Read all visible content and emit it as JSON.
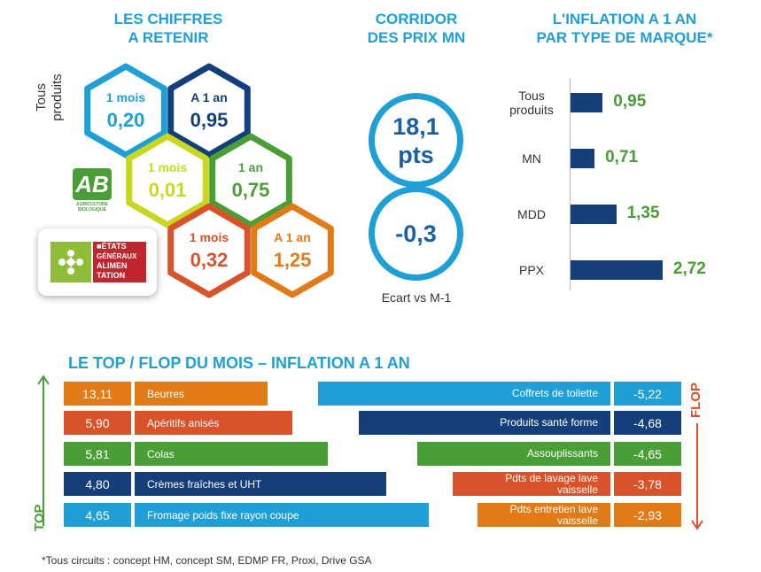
{
  "headers": {
    "chiffres": [
      "LES CHIFFRES",
      "A RETENIR"
    ],
    "corridor": [
      "CORRIDOR",
      "DES PRIX MN"
    ],
    "inflation": [
      "L'INFLATION A 1 AN",
      "PAR TYPE DE MARQUE*"
    ]
  },
  "hex_section": {
    "side_label": [
      "Tous",
      "produits"
    ],
    "bio_logo_text": "AB",
    "bio_logo_sub": "AGRICULTURE BIOLOGIQUE",
    "ega_logo_lines": [
      "■ÉTATS",
      "GÉNÉRAUX",
      "ALIMEN",
      "TATION"
    ],
    "hexes": [
      {
        "label": "1 mois",
        "value": "0,20",
        "color": "#1ea0d6"
      },
      {
        "label": "A 1 an",
        "value": "0,95",
        "color": "#153f7a"
      },
      {
        "label": "1 mois",
        "value": "0,01",
        "color": "#c8d820"
      },
      {
        "label": "1 an",
        "value": "0,75",
        "color": "#4a9e36"
      },
      {
        "label": "1 mois",
        "value": "0,32",
        "color": "#d8522a"
      },
      {
        "label": "A 1 an",
        "value": "1,25",
        "color": "#e07b17"
      }
    ]
  },
  "corridor": {
    "main_value": "18,1",
    "main_unit": "pts",
    "delta_value": "-0,3",
    "caption": "Ecart vs M-1"
  },
  "chart_data": [
    {
      "type": "bar",
      "orientation": "horizontal",
      "title": "L'INFLATION A 1 AN PAR TYPE DE MARQUE*",
      "categories": [
        [
          "Tous",
          "produits"
        ],
        [
          "MN"
        ],
        [
          "MDD"
        ],
        [
          "PPX"
        ]
      ],
      "values": [
        0.95,
        0.71,
        1.35,
        2.72
      ],
      "value_labels": [
        "0,95",
        "0,71",
        "1,35",
        "2,72"
      ],
      "bar_color": "#153f7a",
      "label_color": "#4a9e36"
    },
    {
      "type": "bar",
      "orientation": "horizontal",
      "title": "LE TOP / FLOP DU MOIS – INFLATION A 1 AN",
      "top": {
        "axis_label": "TOP",
        "categories": [
          "Beurres",
          "Apéritifs anisés",
          "Colas",
          "Crèmes fraîches et UHT",
          "Fromage poids fixe rayon coupe"
        ],
        "values": [
          13.11,
          5.9,
          5.81,
          4.8,
          4.65
        ],
        "value_labels": [
          "13,11",
          "5,90",
          "5,81",
          "4,80",
          "4,65"
        ],
        "colors": [
          "#e07b17",
          "#d8522a",
          "#4a9e36",
          "#153f7a",
          "#1ea0d6"
        ]
      },
      "flop": {
        "axis_label": "FLOP",
        "categories": [
          "Coffrets de toilette",
          "Produits santé forme",
          "Assouplissants",
          "Pdts de lavage lave vaisselle",
          "Pdts entretien lave vaisselle"
        ],
        "values": [
          -5.22,
          -4.68,
          -4.65,
          -3.78,
          -2.93
        ],
        "value_labels": [
          "-5,22",
          "-4,68",
          "-4,65",
          "-3,78",
          "-2,93"
        ],
        "colors": [
          "#1ea0d6",
          "#153f7a",
          "#4a9e36",
          "#d8522a",
          "#e07b17"
        ]
      },
      "top_color": "#4a9e36",
      "flop_color": "#d8522a"
    }
  ],
  "footnote": "*Tous circuits : concept HM, concept SM, EDMP FR, Proxi, Drive GSA"
}
